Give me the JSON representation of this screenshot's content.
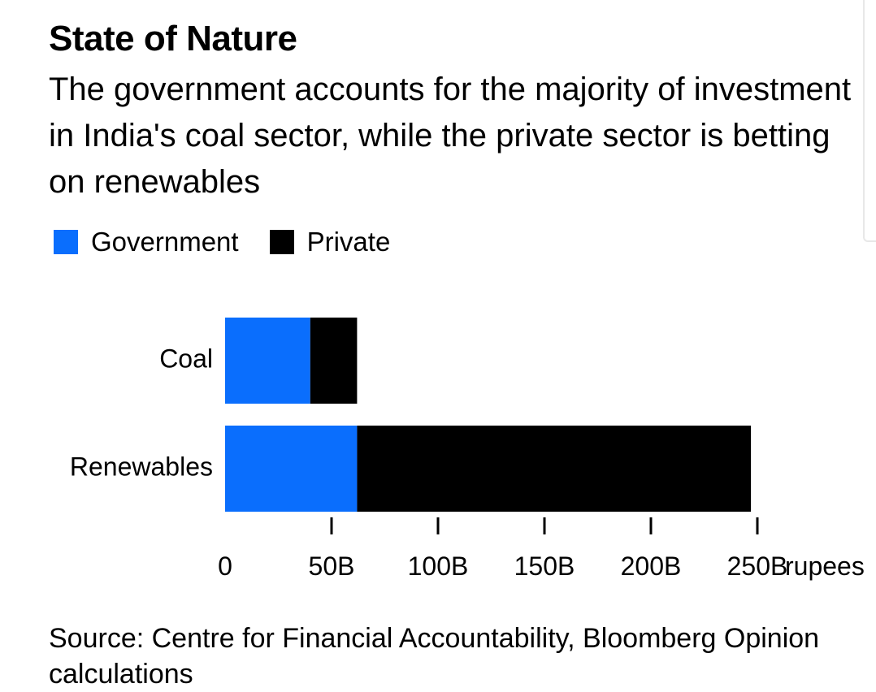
{
  "title": "State of Nature",
  "subtitle": "The government accounts for the majority of investment in India's coal sector, while the private sector is betting on renewables",
  "source": "Source: Centre for Financial Accountability, Bloomberg Opinion calculations",
  "colors": {
    "government": "#0a6efd",
    "private": "#000000"
  },
  "chart_data": {
    "type": "bar",
    "orientation": "horizontal",
    "stacked": true,
    "categories": [
      "Coal",
      "Renewables"
    ],
    "series": [
      {
        "name": "Government",
        "values": [
          40,
          62
        ]
      },
      {
        "name": "Private",
        "values": [
          22,
          185
        ]
      }
    ],
    "x_ticks": [
      "0",
      "50B",
      "100B",
      "150B",
      "200B",
      "250B"
    ],
    "x_tick_values": [
      0,
      50,
      100,
      150,
      200,
      250
    ],
    "x_unit": "rupees",
    "xlim": [
      0,
      250
    ],
    "legend_position": "top-left",
    "grid": false
  }
}
